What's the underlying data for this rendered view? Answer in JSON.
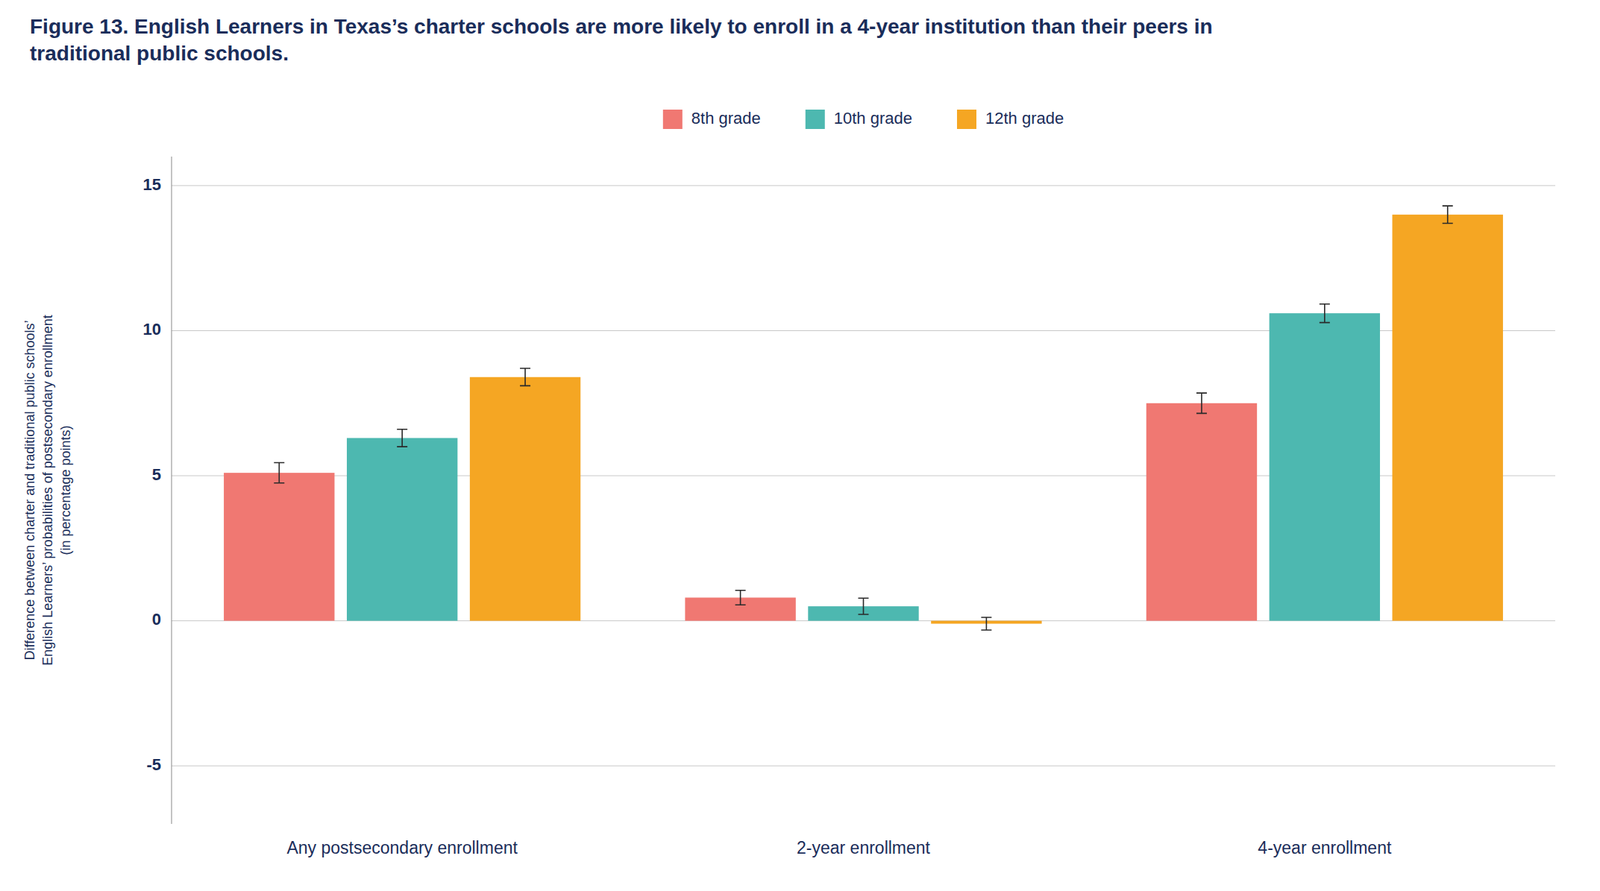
{
  "chart_data": {
    "type": "bar",
    "title": "Figure 13. English Learners in Texas’s charter schools are more likely to enroll in a 4-year institution than their peers in traditional public schools.",
    "y_label": "Difference between charter and traditional public schools’\nEnglish Learners’ probabilities of postsecondary enrollment\n(in percentage points)",
    "categories": [
      "Any postsecondary enrollment",
      "2-year enrollment",
      "4-year enrollment"
    ],
    "series": [
      {
        "name": "8th grade",
        "color": "#f07872",
        "values": [
          5.1,
          0.8,
          7.5
        ],
        "errors": [
          0.35,
          0.25,
          0.35
        ]
      },
      {
        "name": "10th grade",
        "color": "#4db8b0",
        "values": [
          6.3,
          0.5,
          10.6
        ],
        "errors": [
          0.3,
          0.28,
          0.32
        ]
      },
      {
        "name": "12th grade",
        "color": "#f5a623",
        "values": [
          8.4,
          -0.1,
          14.0
        ],
        "errors": [
          0.3,
          0.22,
          0.3
        ]
      }
    ],
    "ylim": [
      -7,
      16
    ],
    "yticks": [
      -5,
      0,
      5,
      10,
      15
    ],
    "grid": true,
    "legend": "top"
  }
}
